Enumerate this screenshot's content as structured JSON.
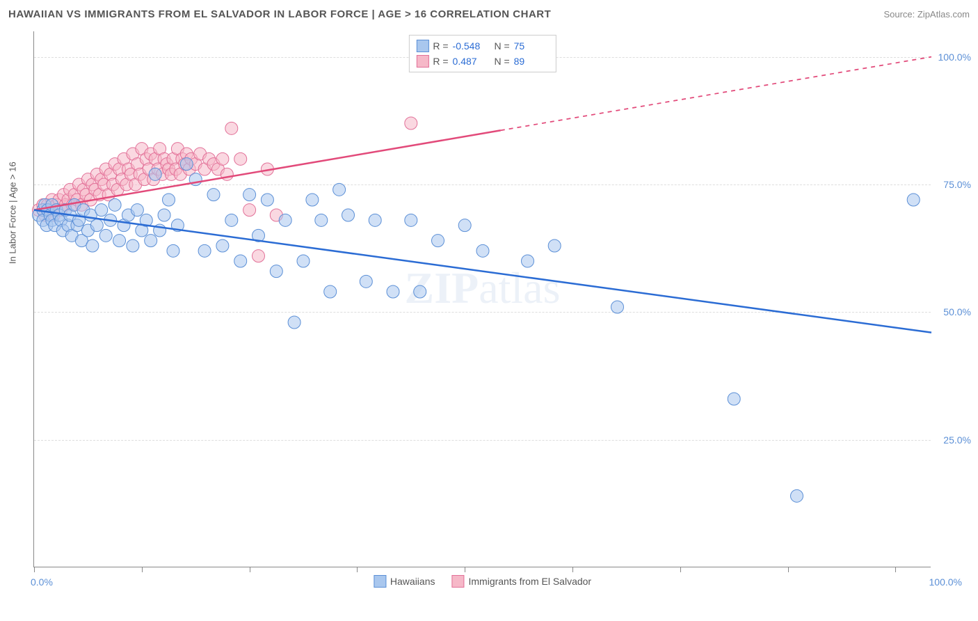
{
  "header": {
    "title": "HAWAIIAN VS IMMIGRANTS FROM EL SALVADOR IN LABOR FORCE | AGE > 16 CORRELATION CHART",
    "source": "Source: ZipAtlas.com"
  },
  "chart": {
    "type": "scatter",
    "y_axis_label": "In Labor Force | Age > 16",
    "x_min_label": "0.0%",
    "x_max_label": "100.0%",
    "xlim": [
      0,
      100
    ],
    "ylim": [
      0,
      105
    ],
    "y_ticks": [
      {
        "value": 25,
        "label": "25.0%"
      },
      {
        "value": 50,
        "label": "50.0%"
      },
      {
        "value": 75,
        "label": "75.0%"
      },
      {
        "value": 100,
        "label": "100.0%"
      }
    ],
    "x_tick_positions": [
      0,
      12,
      24,
      36,
      48,
      60,
      72,
      84,
      96
    ],
    "background_color": "#ffffff",
    "grid_color": "#dddddd",
    "axis_color": "#888888",
    "marker_radius": 9,
    "marker_opacity": 0.55,
    "series": [
      {
        "name": "Hawaiians",
        "fill_color": "#a9c7ee",
        "stroke_color": "#5b8fd6",
        "trend_color": "#2b6cd4",
        "trend_width": 2.5,
        "R": "-0.548",
        "N": "75",
        "trend_line": {
          "x1": 0,
          "y1": 70,
          "x2": 100,
          "y2": 46,
          "dashed_from_x": null
        },
        "points": [
          [
            0.5,
            69
          ],
          [
            1,
            70
          ],
          [
            1,
            68
          ],
          [
            1.2,
            71
          ],
          [
            1.4,
            67
          ],
          [
            1.5,
            70
          ],
          [
            1.8,
            69
          ],
          [
            2,
            68
          ],
          [
            2,
            71
          ],
          [
            2.3,
            67
          ],
          [
            2.5,
            70
          ],
          [
            2.8,
            69
          ],
          [
            3,
            68
          ],
          [
            3.2,
            66
          ],
          [
            3.5,
            70
          ],
          [
            3.8,
            67
          ],
          [
            4,
            69
          ],
          [
            4.2,
            65
          ],
          [
            4.5,
            71
          ],
          [
            4.8,
            67
          ],
          [
            5,
            68
          ],
          [
            5.3,
            64
          ],
          [
            5.5,
            70
          ],
          [
            6,
            66
          ],
          [
            6.3,
            69
          ],
          [
            6.5,
            63
          ],
          [
            7,
            67
          ],
          [
            7.5,
            70
          ],
          [
            8,
            65
          ],
          [
            8.5,
            68
          ],
          [
            9,
            71
          ],
          [
            9.5,
            64
          ],
          [
            10,
            67
          ],
          [
            10.5,
            69
          ],
          [
            11,
            63
          ],
          [
            11.5,
            70
          ],
          [
            12,
            66
          ],
          [
            12.5,
            68
          ],
          [
            13,
            64
          ],
          [
            13.5,
            77
          ],
          [
            14,
            66
          ],
          [
            14.5,
            69
          ],
          [
            15,
            72
          ],
          [
            15.5,
            62
          ],
          [
            16,
            67
          ],
          [
            17,
            79
          ],
          [
            18,
            76
          ],
          [
            19,
            62
          ],
          [
            20,
            73
          ],
          [
            21,
            63
          ],
          [
            22,
            68
          ],
          [
            23,
            60
          ],
          [
            24,
            73
          ],
          [
            25,
            65
          ],
          [
            26,
            72
          ],
          [
            27,
            58
          ],
          [
            28,
            68
          ],
          [
            29,
            48
          ],
          [
            30,
            60
          ],
          [
            31,
            72
          ],
          [
            32,
            68
          ],
          [
            33,
            54
          ],
          [
            34,
            74
          ],
          [
            35,
            69
          ],
          [
            37,
            56
          ],
          [
            38,
            68
          ],
          [
            40,
            54
          ],
          [
            42,
            68
          ],
          [
            43,
            54
          ],
          [
            45,
            64
          ],
          [
            48,
            67
          ],
          [
            50,
            62
          ],
          [
            55,
            60
          ],
          [
            58,
            63
          ],
          [
            65,
            51
          ],
          [
            78,
            33
          ],
          [
            85,
            14
          ],
          [
            98,
            72
          ]
        ]
      },
      {
        "name": "Immigrants from El Salvador",
        "fill_color": "#f6b8c8",
        "stroke_color": "#e27098",
        "trend_color": "#e24a7a",
        "trend_width": 2.5,
        "R": "0.487",
        "N": "89",
        "trend_line": {
          "x1": 0,
          "y1": 70,
          "x2": 100,
          "y2": 100,
          "dashed_from_x": 52
        },
        "points": [
          [
            0.5,
            70
          ],
          [
            1,
            71
          ],
          [
            1.2,
            69
          ],
          [
            1.5,
            71
          ],
          [
            1.8,
            70
          ],
          [
            2,
            72
          ],
          [
            2.2,
            69
          ],
          [
            2.5,
            71
          ],
          [
            2.8,
            72
          ],
          [
            3,
            70
          ],
          [
            3.3,
            73
          ],
          [
            3.5,
            71
          ],
          [
            3.8,
            72
          ],
          [
            4,
            74
          ],
          [
            4.3,
            71
          ],
          [
            4.5,
            73
          ],
          [
            4.8,
            72
          ],
          [
            5,
            75
          ],
          [
            5.3,
            71
          ],
          [
            5.5,
            74
          ],
          [
            5.8,
            73
          ],
          [
            6,
            76
          ],
          [
            6.3,
            72
          ],
          [
            6.5,
            75
          ],
          [
            6.8,
            74
          ],
          [
            7,
            77
          ],
          [
            7.3,
            73
          ],
          [
            7.5,
            76
          ],
          [
            7.8,
            75
          ],
          [
            8,
            78
          ],
          [
            8.3,
            73
          ],
          [
            8.5,
            77
          ],
          [
            8.8,
            75
          ],
          [
            9,
            79
          ],
          [
            9.3,
            74
          ],
          [
            9.5,
            78
          ],
          [
            9.8,
            76
          ],
          [
            10,
            80
          ],
          [
            10.3,
            75
          ],
          [
            10.5,
            78
          ],
          [
            10.8,
            77
          ],
          [
            11,
            81
          ],
          [
            11.3,
            75
          ],
          [
            11.5,
            79
          ],
          [
            11.8,
            77
          ],
          [
            12,
            82
          ],
          [
            12.3,
            76
          ],
          [
            12.5,
            80
          ],
          [
            12.8,
            78
          ],
          [
            13,
            81
          ],
          [
            13.3,
            76
          ],
          [
            13.5,
            80
          ],
          [
            13.8,
            78
          ],
          [
            14,
            82
          ],
          [
            14.3,
            77
          ],
          [
            14.5,
            80
          ],
          [
            14.8,
            79
          ],
          [
            15,
            78
          ],
          [
            15.3,
            77
          ],
          [
            15.5,
            80
          ],
          [
            15.8,
            78
          ],
          [
            16,
            82
          ],
          [
            16.3,
            77
          ],
          [
            16.5,
            80
          ],
          [
            16.8,
            79
          ],
          [
            17,
            81
          ],
          [
            17.3,
            78
          ],
          [
            17.5,
            80
          ],
          [
            18,
            79
          ],
          [
            18.5,
            81
          ],
          [
            19,
            78
          ],
          [
            19.5,
            80
          ],
          [
            20,
            79
          ],
          [
            20.5,
            78
          ],
          [
            21,
            80
          ],
          [
            21.5,
            77
          ],
          [
            22,
            86
          ],
          [
            23,
            80
          ],
          [
            24,
            70
          ],
          [
            25,
            61
          ],
          [
            26,
            78
          ],
          [
            27,
            69
          ],
          [
            42,
            87
          ]
        ]
      }
    ],
    "watermark": {
      "text_bold": "ZIP",
      "text_light": "atlas"
    }
  },
  "legend": {
    "items": [
      {
        "label": "Hawaiians",
        "fill": "#a9c7ee",
        "stroke": "#5b8fd6"
      },
      {
        "label": "Immigrants from El Salvador",
        "fill": "#f6b8c8",
        "stroke": "#e27098"
      }
    ]
  }
}
